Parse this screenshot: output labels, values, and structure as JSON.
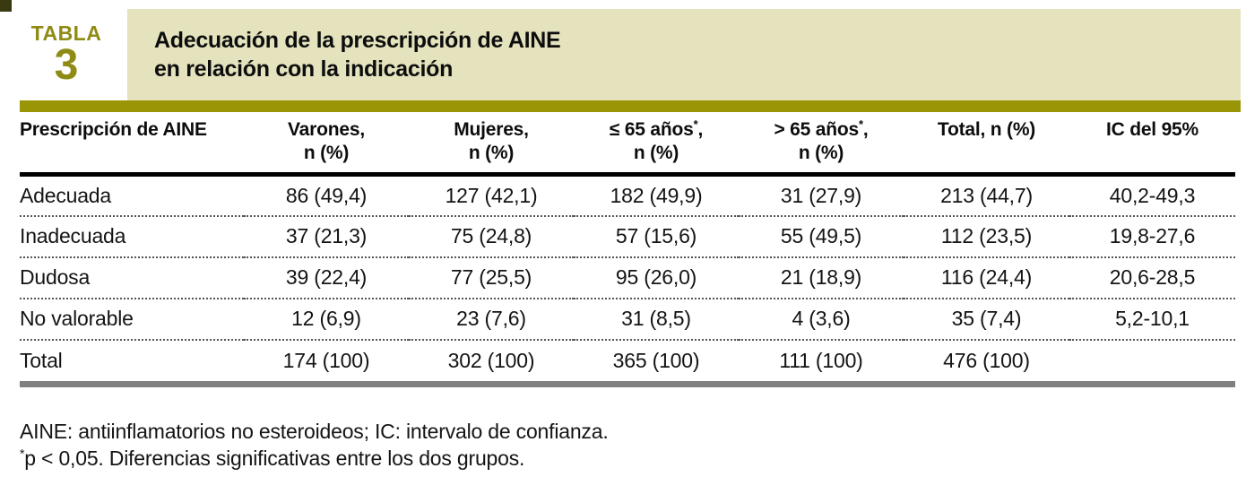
{
  "badge": {
    "label": "TABLA",
    "number": "3"
  },
  "title": {
    "line1": "Adecuación de la prescripción de AINE",
    "line2": "en relación con la indicación"
  },
  "colors": {
    "olive_bar": "#9a9507",
    "olive_badge_text": "#8f8b15",
    "title_block_beige": "#e4e3bd",
    "corner_square": "#3a3a10",
    "header_rule_black": "#000000",
    "bottom_bar_gray": "#808080"
  },
  "table": {
    "columns": [
      {
        "line1": "Prescripción de AINE",
        "sup": "",
        "after_sup": "",
        "line2": ""
      },
      {
        "line1": "Varones,",
        "sup": "",
        "after_sup": "",
        "line2": "n (%)"
      },
      {
        "line1": "Mujeres,",
        "sup": "",
        "after_sup": "",
        "line2": "n (%)"
      },
      {
        "line1": "≤ 65 años",
        "sup": "*",
        "after_sup": ",",
        "line2": "n (%)"
      },
      {
        "line1": "> 65 años",
        "sup": "*",
        "after_sup": ",",
        "line2": "n (%)"
      },
      {
        "line1": "Total, n (%)",
        "sup": "",
        "after_sup": "",
        "line2": ""
      },
      {
        "line1": "IC del 95%",
        "sup": "",
        "after_sup": "",
        "line2": ""
      }
    ],
    "rows": [
      {
        "label": "Adecuada",
        "values": [
          "86 (49,4)",
          "127 (42,1)",
          "182 (49,9)",
          "31 (27,9)",
          "213 (44,7)",
          "40,2-49,3"
        ]
      },
      {
        "label": "Inadecuada",
        "values": [
          "37 (21,3)",
          "75 (24,8)",
          "57 (15,6)",
          "55 (49,5)",
          "112 (23,5)",
          "19,8-27,6"
        ]
      },
      {
        "label": "Dudosa",
        "values": [
          "39 (22,4)",
          "77 (25,5)",
          "95 (26,0)",
          "21 (18,9)",
          "116 (24,4)",
          "20,6-28,5"
        ]
      },
      {
        "label": "No valorable",
        "values": [
          "12 (6,9)",
          "23 (7,6)",
          "31 (8,5)",
          "4 (3,6)",
          "35 (7,4)",
          "5,2-10,1"
        ]
      },
      {
        "label": "Total",
        "values": [
          "174 (100)",
          "302 (100)",
          "365 (100)",
          "111 (100)",
          "476 (100)",
          ""
        ]
      }
    ]
  },
  "footnotes": {
    "line1": "AINE: antiinflamatorios no esteroideos; IC: intervalo de confianza.",
    "line2_sup": "*",
    "line2_text": "p < 0,05. Diferencias significativas entre los dos grupos."
  }
}
